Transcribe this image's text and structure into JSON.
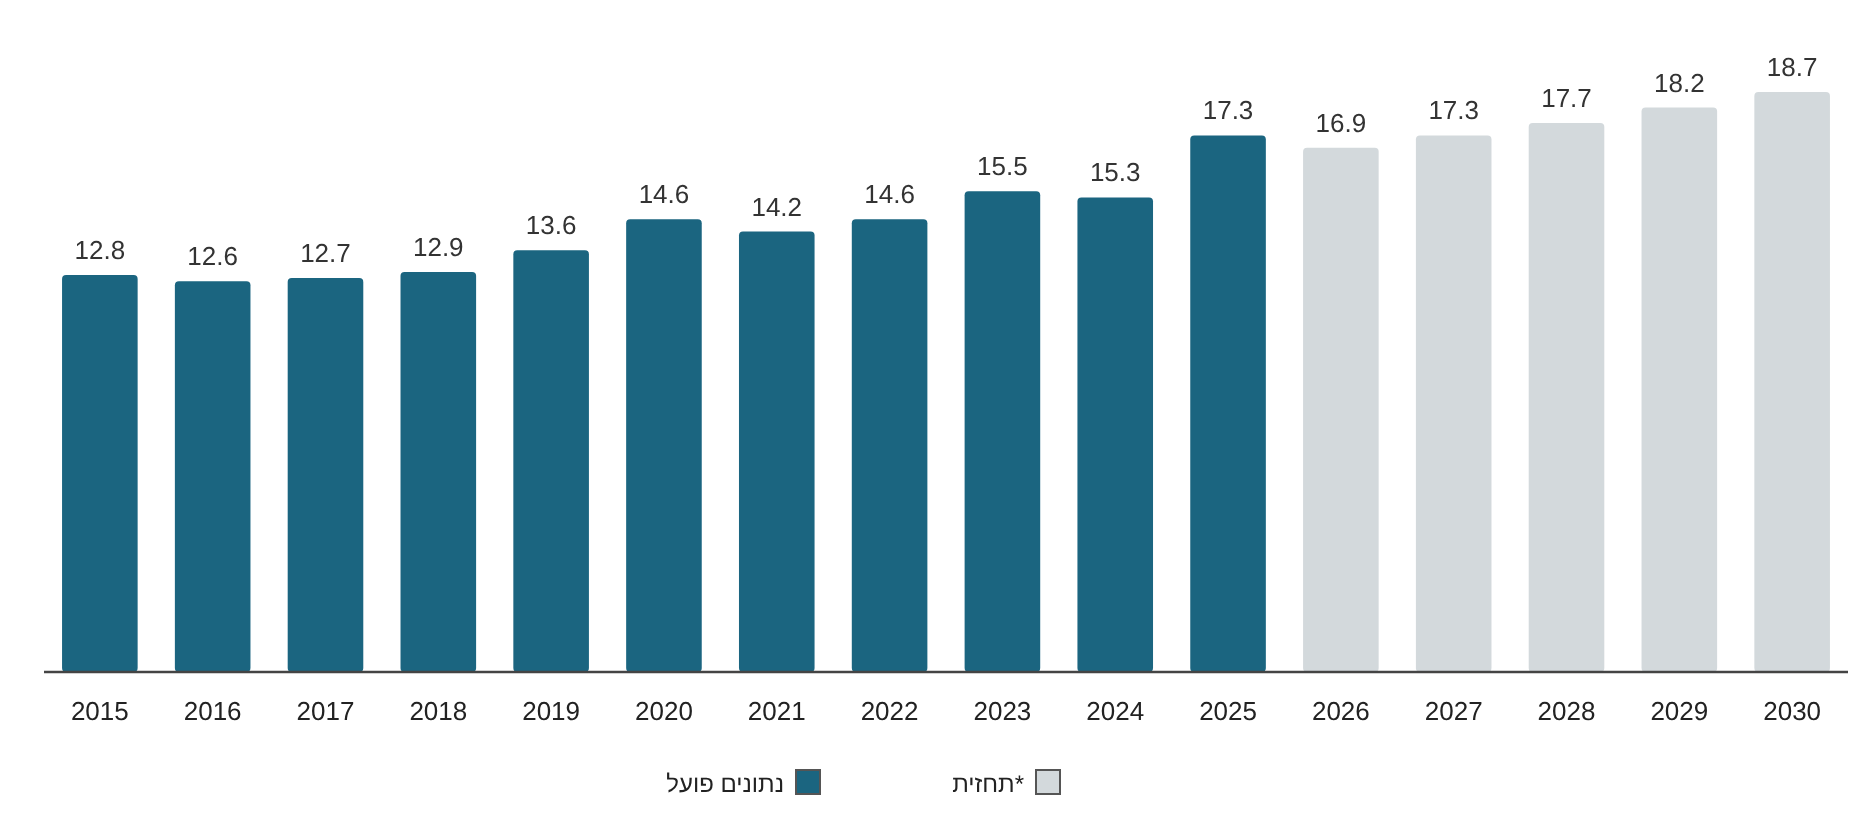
{
  "chart_data": {
    "type": "bar",
    "categories": [
      "2015",
      "2016",
      "2017",
      "2018",
      "2019",
      "2020",
      "2021",
      "2022",
      "2023",
      "2024",
      "2025",
      "2026",
      "2027",
      "2028",
      "2029",
      "2030"
    ],
    "series": [
      {
        "name": "נתונים פועל",
        "color": "#1b6580",
        "values": [
          12.8,
          12.6,
          12.7,
          12.9,
          13.6,
          14.6,
          14.2,
          14.6,
          15.5,
          15.3,
          17.3,
          null,
          null,
          null,
          null,
          null
        ]
      },
      {
        "name": "תחזית*",
        "color": "#d3d9dc",
        "values": [
          null,
          null,
          null,
          null,
          null,
          null,
          null,
          null,
          null,
          null,
          null,
          16.9,
          17.3,
          17.7,
          18.2,
          18.7
        ]
      }
    ],
    "data_labels": true,
    "legend": "bottom",
    "grid": false
  }
}
